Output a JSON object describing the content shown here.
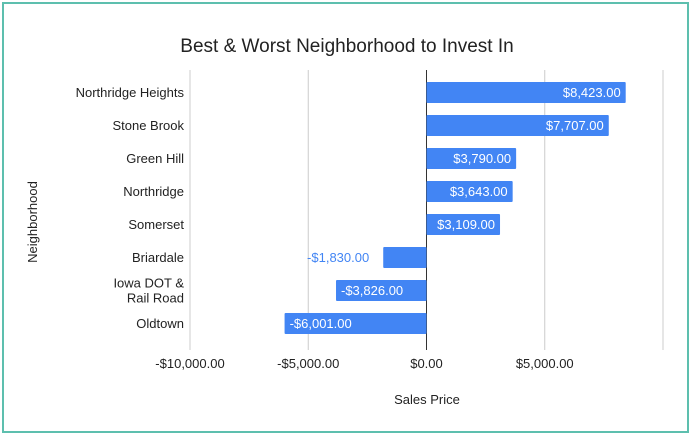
{
  "chart_data": {
    "type": "bar",
    "orientation": "horizontal",
    "title": "Best & Worst Neighborhood to Invest In",
    "xlabel": "Sales Price",
    "ylabel": "Neighborhood",
    "xlim": [
      -10000,
      10000
    ],
    "xticks": [
      -10000,
      -5000,
      0,
      5000
    ],
    "xtick_labels": [
      "-$10,000.00",
      "-$5,000.00",
      "$0.00",
      "$5,000.00"
    ],
    "grid": true,
    "legend": "none",
    "categories": [
      "Northridge Heights",
      "Stone Brook",
      "Green Hill",
      "Northridge",
      "Somerset",
      "Briardale",
      "Iowa DOT &\nRail Road",
      "Oldtown"
    ],
    "values": [
      8423,
      7707,
      3790,
      3643,
      3109,
      -1830,
      -3826,
      -6001
    ],
    "data_labels": [
      "$8,423.00",
      "$7,707.00",
      "$3,790.00",
      "$3,643.00",
      "$3,109.00",
      "-$1,830.00",
      "-$3,826.00",
      "-$6,001.00"
    ],
    "colors": {
      "bar": "#4285f4",
      "label_inside": "#ffffff",
      "label_outside": "#4285f4",
      "text": "#222222",
      "grid": "#cccccc",
      "zero_axis": "#333333",
      "frame": "#5dbfae"
    }
  }
}
